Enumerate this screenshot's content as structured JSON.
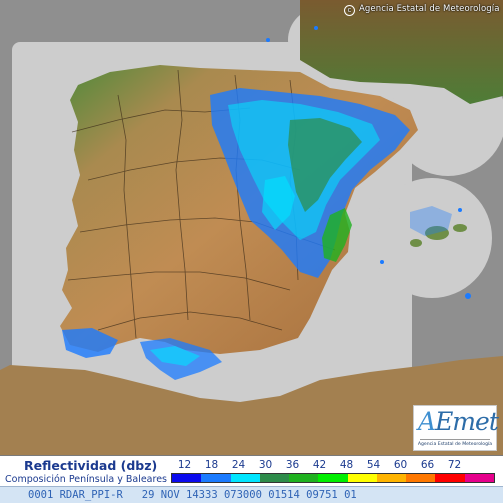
{
  "map": {
    "copyright": "Agencia Estatal de Meteorología",
    "copyright_symbol": "c",
    "region": "Península Ibérica y Baleares",
    "sea_color": "#8f8f8f",
    "radar_coverage_color": "#cdcdcd"
  },
  "logo": {
    "text_a": "A",
    "text_rest": "Emet",
    "subtitle": "Agencia Estatal de Meteorología",
    "color": "#2c6ca8"
  },
  "legend": {
    "title": "Reflectividad (dbz)",
    "subtitle": "Composición Península y Baleares",
    "values": [
      "12",
      "18",
      "24",
      "30",
      "36",
      "42",
      "48",
      "54",
      "60",
      "66",
      "72"
    ],
    "colors": [
      "#0a0aee",
      "#1b7bff",
      "#00e5ff",
      "#2e8c4a",
      "#1fb21f",
      "#00ee00",
      "#ffff00",
      "#ffb400",
      "#ff7800",
      "#ff0000",
      "#e6008c"
    ]
  },
  "status_bar": {
    "text": "0001 RDAR_PPI-R   29 NOV 14333 073000 01514 09751 01"
  },
  "radar_echoes": [
    {
      "zone": "ebro-valley",
      "level_dbz": 12
    },
    {
      "zone": "catalonia",
      "level_dbz": 24
    },
    {
      "zone": "valencia-coast",
      "level_dbz": 36
    },
    {
      "zone": "gulf-of-cadiz",
      "level_dbz": 18
    },
    {
      "zone": "strait-of-gibraltar",
      "level_dbz": 18
    },
    {
      "zone": "balearic-islands",
      "level_dbz": 12
    }
  ]
}
